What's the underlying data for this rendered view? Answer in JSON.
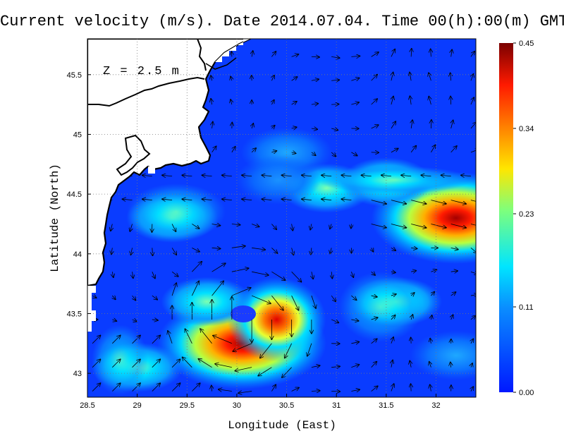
{
  "title": "Current velocity (m/s). Date 2014.07.04. Time 00(h):00(m) GMT",
  "depth_label": "Z = 2.5 m",
  "x_axis": {
    "label": "Longitude (East)",
    "ticks": [
      "28.5",
      "29",
      "29.5",
      "30",
      "30.5",
      "31",
      "31.5",
      "32"
    ],
    "tick_values": [
      28.5,
      29,
      29.5,
      30,
      30.5,
      31,
      31.5,
      32
    ],
    "range": [
      28.5,
      32.4
    ]
  },
  "y_axis": {
    "label": "Latitude (North)",
    "ticks": [
      "43",
      "43.5",
      "44",
      "44.5",
      "45",
      "45.5"
    ],
    "tick_values": [
      43,
      43.5,
      44,
      44.5,
      45,
      45.5
    ],
    "range": [
      42.8,
      45.8
    ]
  },
  "colorbar": {
    "ticks": [
      "0.45",
      "0.34",
      "0.23",
      "0.11",
      "0.00"
    ],
    "tick_values": [
      0.45,
      0.34,
      0.23,
      0.11,
      0.0
    ],
    "colors": [
      "#0000ff",
      "#0080ff",
      "#00ffff",
      "#80ff80",
      "#ffff00",
      "#ff8000",
      "#ff0000",
      "#800000"
    ]
  },
  "hotspots": [
    {
      "lon": 30.05,
      "lat": 43.25,
      "speed": 0.43
    },
    {
      "lon": 32.2,
      "lat": 44.3,
      "speed": 0.38
    },
    {
      "lon": 29.35,
      "lat": 44.3,
      "speed": 0.16
    },
    {
      "lon": 30.4,
      "lat": 43.45,
      "speed": 0.22
    },
    {
      "lon": 29.7,
      "lat": 43.6,
      "speed": 0.18
    },
    {
      "lon": 31.6,
      "lat": 43.6,
      "speed": 0.13
    },
    {
      "lon": 30.9,
      "lat": 44.55,
      "speed": 0.14
    },
    {
      "lon": 31.5,
      "lat": 44.6,
      "speed": 0.15
    },
    {
      "lon": 30.5,
      "lat": 44.85,
      "speed": 0.1
    },
    {
      "lon": 29.0,
      "lat": 43.05,
      "speed": 0.14
    },
    {
      "lon": 32.2,
      "lat": 43.15,
      "speed": 0.09
    }
  ]
}
